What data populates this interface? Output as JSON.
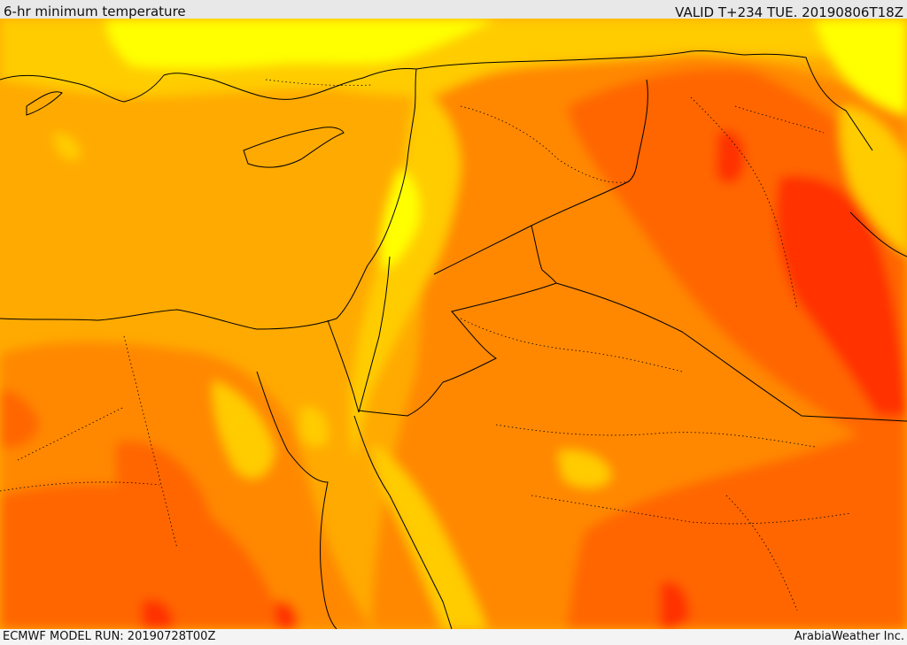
{
  "header": {
    "title": "6-hr minimum temperature",
    "valid": "VALID T+234 TUE. 20190806T18Z"
  },
  "footer": {
    "model_run": "ECMWF MODEL RUN: 20190728T00Z",
    "credit": "ArabiaWeather Inc."
  },
  "palette": {
    "yellow": "#ffff00",
    "light_orange": "#ffcc00",
    "orange": "#ffaa00",
    "dark_orange": "#ff8800",
    "red_orange": "#ff6600",
    "red": "#ff3300"
  }
}
